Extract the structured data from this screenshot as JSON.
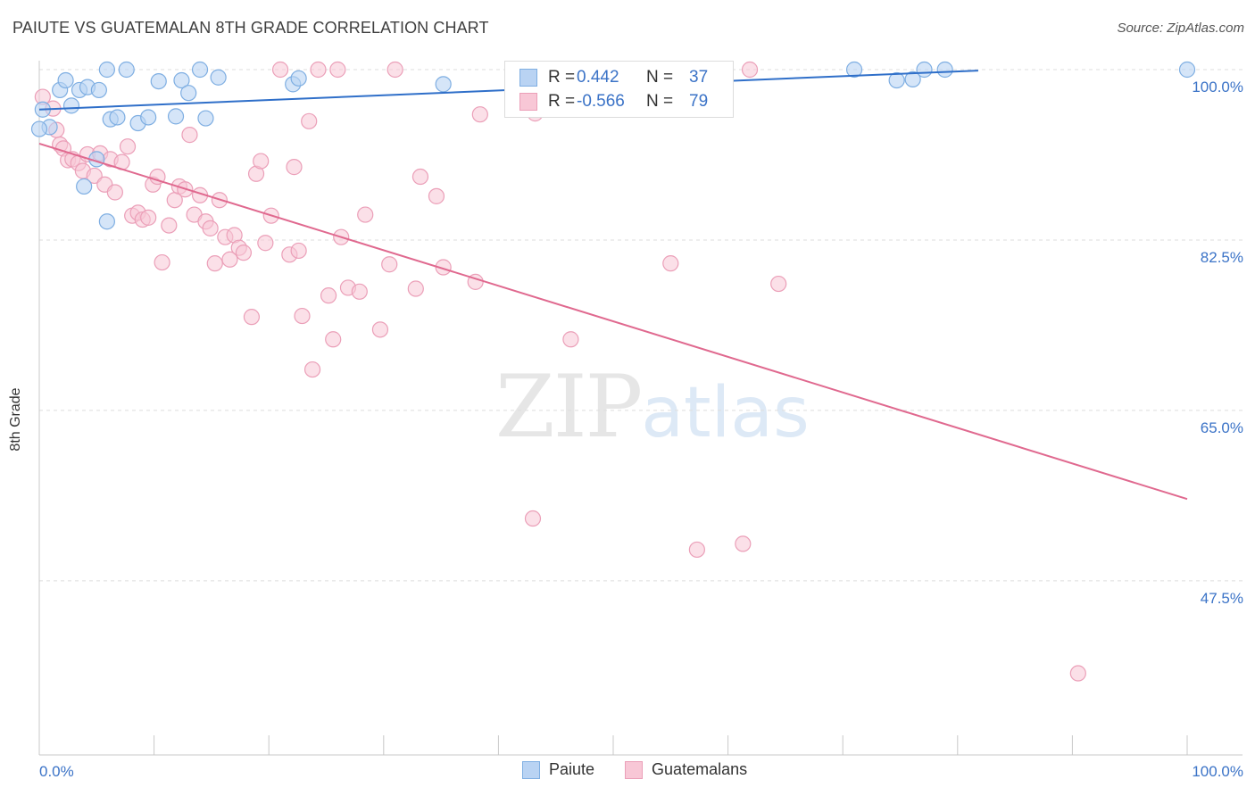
{
  "header": {
    "title": "PAIUTE VS GUATEMALAN 8TH GRADE CORRELATION CHART",
    "source": "Source: ZipAtlas.com"
  },
  "watermark": {
    "zip": "ZIP",
    "atlas": "atlas"
  },
  "legend": {
    "rows": [
      {
        "r_label": "R =",
        "r_value": "0.442",
        "n_label": "N =",
        "n_value": "37"
      },
      {
        "r_label": "R =",
        "r_value": "-0.566",
        "n_label": "N =",
        "n_value": "79"
      }
    ],
    "bottom": [
      "Paiute",
      "Guatemalans"
    ]
  },
  "colors": {
    "paiute_fill": "#b9d3f3",
    "paiute_stroke": "#7eaee2",
    "paiute_line": "#2f6fc9",
    "guat_fill": "#f8c7d6",
    "guat_stroke": "#eb9fb8",
    "guat_line": "#e0698f",
    "value_blue": "#3b73c7"
  },
  "chart_data": {
    "type": "scatter",
    "title": "PAIUTE VS GUATEMALAN 8TH GRADE CORRELATION CHART",
    "xlabel": "",
    "ylabel": "8th Grade",
    "xlim": [
      0,
      100
    ],
    "ylim": [
      32,
      100
    ],
    "x_tick_labels": [
      "0.0%",
      "100.0%"
    ],
    "y_ticks": [
      47.5,
      65.0,
      82.5,
      100.0
    ],
    "y_tick_labels": [
      "47.5%",
      "65.0%",
      "82.5%",
      "100.0%"
    ],
    "series": [
      {
        "name": "Paiute",
        "r": 0.442,
        "n": 37,
        "trend": {
          "x0": 0,
          "y0": 95.9,
          "x1": 81.8,
          "y1": 99.9
        },
        "points": [
          [
            0.3,
            95.9
          ],
          [
            0.9,
            94.1
          ],
          [
            0.0,
            93.9
          ],
          [
            1.8,
            97.9
          ],
          [
            2.3,
            98.9
          ],
          [
            2.8,
            96.3
          ],
          [
            3.5,
            97.9
          ],
          [
            4.2,
            98.2
          ],
          [
            5.2,
            97.9
          ],
          [
            5.0,
            90.8
          ],
          [
            5.9,
            100
          ],
          [
            6.2,
            94.9
          ],
          [
            6.8,
            95.1
          ],
          [
            7.6,
            100
          ],
          [
            8.6,
            94.5
          ],
          [
            9.5,
            95.1
          ],
          [
            10.4,
            98.8
          ],
          [
            11.9,
            95.2
          ],
          [
            12.4,
            98.9
          ],
          [
            13.0,
            97.6
          ],
          [
            14.0,
            100
          ],
          [
            14.5,
            95.0
          ],
          [
            15.6,
            99.2
          ],
          [
            22.1,
            98.5
          ],
          [
            22.6,
            99.1
          ],
          [
            3.9,
            88.0
          ],
          [
            5.9,
            84.4
          ],
          [
            35.2,
            98.5
          ],
          [
            46.8,
            100
          ],
          [
            52.0,
            99.6
          ],
          [
            57.0,
            100
          ],
          [
            71.0,
            100
          ],
          [
            74.7,
            98.9
          ],
          [
            76.1,
            99.0
          ],
          [
            77.1,
            100
          ],
          [
            78.9,
            100
          ],
          [
            100,
            100
          ]
        ]
      },
      {
        "name": "Guatemalans",
        "r": -0.566,
        "n": 79,
        "trend": {
          "x0": 0,
          "y0": 92.4,
          "x1": 100,
          "y1": 55.9
        },
        "points": [
          [
            0.3,
            97.2
          ],
          [
            1.2,
            96.0
          ],
          [
            1.5,
            93.8
          ],
          [
            1.8,
            92.3
          ],
          [
            2.1,
            91.9
          ],
          [
            2.5,
            90.7
          ],
          [
            2.9,
            90.8
          ],
          [
            3.4,
            90.4
          ],
          [
            3.8,
            89.6
          ],
          [
            4.2,
            91.3
          ],
          [
            4.8,
            89.1
          ],
          [
            5.3,
            91.4
          ],
          [
            5.7,
            88.2
          ],
          [
            6.2,
            90.8
          ],
          [
            6.6,
            87.4
          ],
          [
            7.2,
            90.5
          ],
          [
            7.7,
            92.1
          ],
          [
            8.1,
            85.0
          ],
          [
            8.6,
            85.3
          ],
          [
            9.0,
            84.6
          ],
          [
            9.5,
            84.8
          ],
          [
            9.9,
            88.2
          ],
          [
            10.3,
            89.0
          ],
          [
            10.7,
            80.2
          ],
          [
            11.3,
            84.0
          ],
          [
            11.8,
            86.6
          ],
          [
            12.2,
            88.0
          ],
          [
            12.7,
            87.7
          ],
          [
            13.1,
            93.3
          ],
          [
            13.5,
            85.1
          ],
          [
            14.0,
            87.1
          ],
          [
            14.5,
            84.4
          ],
          [
            14.9,
            83.7
          ],
          [
            15.3,
            80.1
          ],
          [
            15.7,
            86.6
          ],
          [
            16.2,
            82.8
          ],
          [
            16.6,
            80.5
          ],
          [
            17.0,
            83.0
          ],
          [
            17.4,
            81.7
          ],
          [
            17.8,
            81.2
          ],
          [
            18.5,
            74.6
          ],
          [
            18.9,
            89.3
          ],
          [
            19.3,
            90.6
          ],
          [
            19.7,
            82.2
          ],
          [
            20.2,
            85.0
          ],
          [
            21.8,
            81.0
          ],
          [
            22.2,
            90.0
          ],
          [
            22.6,
            81.4
          ],
          [
            22.9,
            74.7
          ],
          [
            23.5,
            94.7
          ],
          [
            23.8,
            69.2
          ],
          [
            25.2,
            76.8
          ],
          [
            25.6,
            72.3
          ],
          [
            26.3,
            82.8
          ],
          [
            26.9,
            77.6
          ],
          [
            27.9,
            77.2
          ],
          [
            28.4,
            85.1
          ],
          [
            29.7,
            73.3
          ],
          [
            30.5,
            80.0
          ],
          [
            32.8,
            77.5
          ],
          [
            33.2,
            89.0
          ],
          [
            34.6,
            87.0
          ],
          [
            35.2,
            79.7
          ],
          [
            38.0,
            78.2
          ],
          [
            38.4,
            95.4
          ],
          [
            43.2,
            95.5
          ],
          [
            43.0,
            53.9
          ],
          [
            46.3,
            72.3
          ],
          [
            52.1,
            100
          ],
          [
            55.0,
            80.1
          ],
          [
            57.3,
            50.7
          ],
          [
            61.3,
            51.3
          ],
          [
            61.9,
            100
          ],
          [
            64.4,
            78.0
          ],
          [
            21.0,
            100
          ],
          [
            24.3,
            100
          ],
          [
            26.0,
            100
          ],
          [
            31.0,
            100
          ],
          [
            90.5,
            38.0
          ]
        ]
      }
    ]
  }
}
